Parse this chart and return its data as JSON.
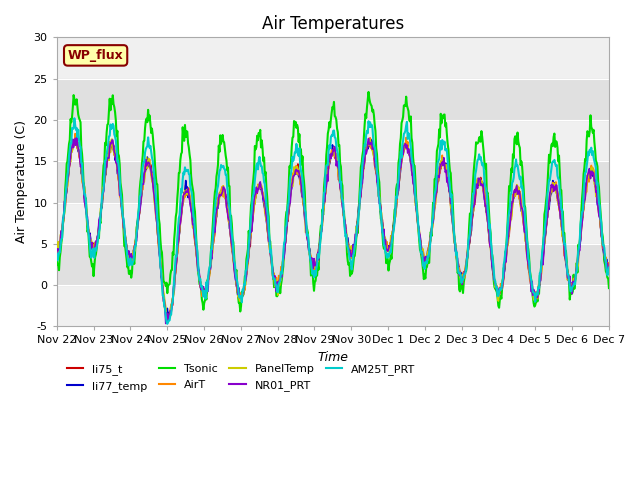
{
  "title": "Air Temperatures",
  "xlabel": "Time",
  "ylabel": "Air Temperature (C)",
  "ylim": [
    -5,
    30
  ],
  "series_names": [
    "li75_t",
    "li77_temp",
    "Tsonic",
    "AirT",
    "PanelTemp",
    "NR01_PRT",
    "AM25T_PRT"
  ],
  "series_colors": [
    "#cc0000",
    "#0000cc",
    "#00dd00",
    "#ff8800",
    "#cccc00",
    "#8800cc",
    "#00cccc"
  ],
  "series_linewidths": [
    1.2,
    1.2,
    1.5,
    1.2,
    1.2,
    1.2,
    1.5
  ],
  "wp_flux_label": "WP_flux",
  "wp_flux_bg": "#ffffaa",
  "wp_flux_border": "#880000",
  "background_color": "#ffffff",
  "band_color": "#e0e0e0",
  "title_fontsize": 12,
  "axis_label_fontsize": 9,
  "tick_fontsize": 8,
  "n_days": 15,
  "yticks": [
    -5,
    0,
    5,
    10,
    15,
    20,
    25,
    30
  ],
  "xtick_labels": [
    "Nov 22",
    "Nov 23",
    "Nov 24",
    "Nov 25",
    "Nov 26",
    "Nov 27",
    "Nov 28",
    "Nov 29",
    "Nov 30",
    "Dec 1",
    "Dec 2",
    "Dec 3",
    "Dec 4",
    "Dec 5",
    "Dec 6",
    "Dec 7"
  ]
}
